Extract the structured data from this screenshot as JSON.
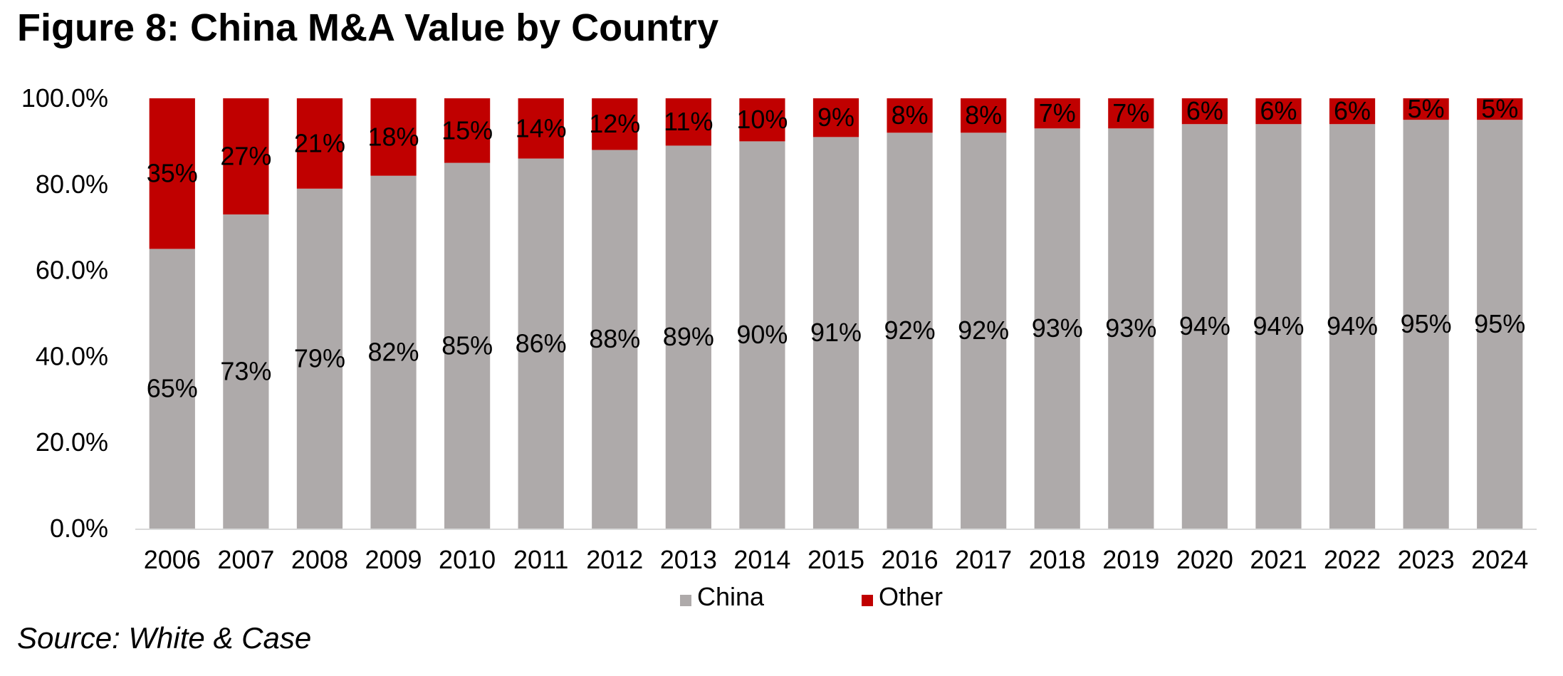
{
  "figure": {
    "title": "Figure 8: China M&A Value by Country",
    "source": "Source: White & Case"
  },
  "chart_data": {
    "type": "bar",
    "stacked": true,
    "percent": true,
    "categories": [
      "2006",
      "2007",
      "2008",
      "2009",
      "2010",
      "2011",
      "2012",
      "2013",
      "2014",
      "2015",
      "2016",
      "2017",
      "2018",
      "2019",
      "2020",
      "2021",
      "2022",
      "2023",
      "2024"
    ],
    "series": [
      {
        "name": "China",
        "color": "#AEAAAA",
        "values": [
          65,
          73,
          79,
          82,
          85,
          86,
          88,
          89,
          90,
          91,
          92,
          92,
          93,
          93,
          94,
          94,
          94,
          95,
          95
        ],
        "labels": [
          "65%",
          "73%",
          "79%",
          "82%",
          "85%",
          "86%",
          "88%",
          "89%",
          "90%",
          "91%",
          "92%",
          "92%",
          "93%",
          "93%",
          "94%",
          "94%",
          "94%",
          "95%",
          "95%"
        ]
      },
      {
        "name": "Other",
        "color": "#C00000",
        "values": [
          35,
          27,
          21,
          18,
          15,
          14,
          12,
          11,
          10,
          9,
          8,
          8,
          7,
          7,
          6,
          6,
          6,
          5,
          5
        ],
        "labels": [
          "35%",
          "27%",
          "21%",
          "18%",
          "15%",
          "14%",
          "12%",
          "11%",
          "10%",
          "9%",
          "8%",
          "8%",
          "7%",
          "7%",
          "6%",
          "6%",
          "6%",
          "5%",
          "5%"
        ]
      }
    ],
    "y_ticks": [
      "0.0%",
      "20.0%",
      "40.0%",
      "60.0%",
      "80.0%",
      "100.0%"
    ],
    "ylim": [
      0,
      100
    ],
    "xlabel": "",
    "ylabel": "",
    "grid": false,
    "legend_position": "bottom"
  }
}
